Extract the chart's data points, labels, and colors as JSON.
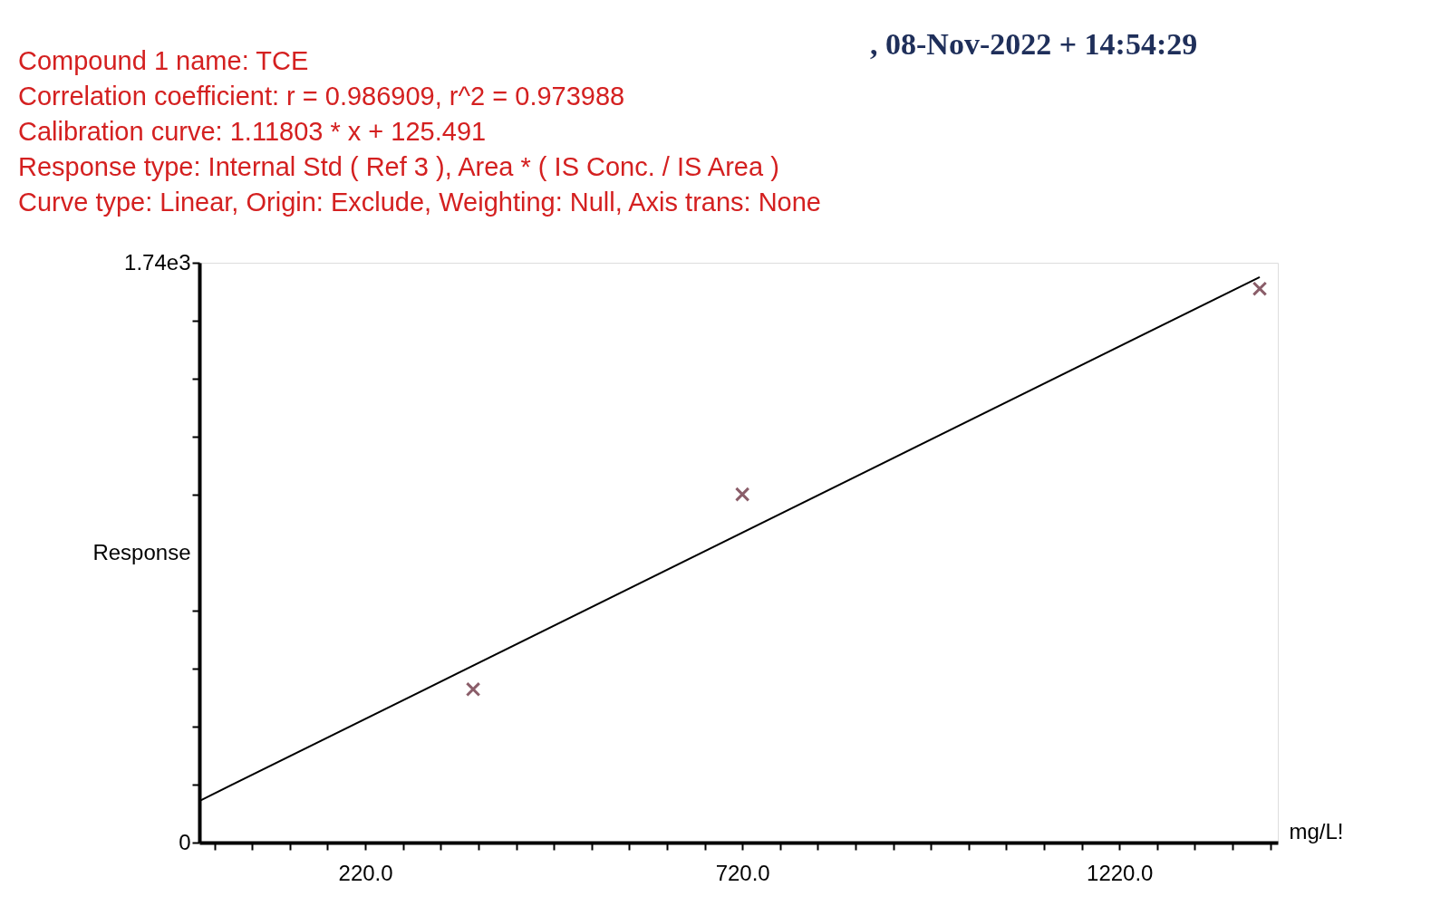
{
  "chart_data": {
    "type": "scatter",
    "annotations": [
      ", 08-Nov-2022 + 14:54:29",
      "Compound 1 name: TCE",
      "Correlation coefficient: r = 0.986909, r^2 = 0.973988",
      "Calibration curve: 1.11803 * x + 125.491",
      "Response type: Internal Std ( Ref 3 ), Area * ( IS Conc. / IS Area )",
      "Curve type: Linear, Origin: Exclude, Weighting: Null, Axis trans: None"
    ],
    "xlabel": "mg/L!",
    "ylabel": "Response",
    "xlim": [
      0,
      1430
    ],
    "ylim": [
      0,
      1740
    ],
    "xticks": [
      {
        "value": 20,
        "label": null
      },
      {
        "value": 70,
        "label": null
      },
      {
        "value": 120,
        "label": null
      },
      {
        "value": 170,
        "label": null
      },
      {
        "value": 220,
        "label": "220.0"
      },
      {
        "value": 270,
        "label": null
      },
      {
        "value": 320,
        "label": null
      },
      {
        "value": 370,
        "label": null
      },
      {
        "value": 420,
        "label": null
      },
      {
        "value": 470,
        "label": null
      },
      {
        "value": 520,
        "label": null
      },
      {
        "value": 570,
        "label": null
      },
      {
        "value": 620,
        "label": null
      },
      {
        "value": 670,
        "label": null
      },
      {
        "value": 720,
        "label": "720.0"
      },
      {
        "value": 770,
        "label": null
      },
      {
        "value": 820,
        "label": null
      },
      {
        "value": 870,
        "label": null
      },
      {
        "value": 920,
        "label": null
      },
      {
        "value": 970,
        "label": null
      },
      {
        "value": 1020,
        "label": null
      },
      {
        "value": 1070,
        "label": null
      },
      {
        "value": 1120,
        "label": null
      },
      {
        "value": 1170,
        "label": null
      },
      {
        "value": 1220,
        "label": "1220.0"
      },
      {
        "value": 1270,
        "label": null
      },
      {
        "value": 1320,
        "label": null
      },
      {
        "value": 1370,
        "label": null
      },
      {
        "value": 1420,
        "label": null
      }
    ],
    "yticks": [
      0,
      {
        "value": 174,
        "label": null
      },
      {
        "value": 348,
        "label": null
      },
      {
        "value": 522,
        "label": null
      },
      {
        "value": 696,
        "label": null
      },
      {
        "value": 1044,
        "label": null
      },
      {
        "value": 1218,
        "label": null
      },
      {
        "value": 1392,
        "label": null
      },
      {
        "value": 1566,
        "label": null
      },
      {
        "value": 1740,
        "label": "1.74e3"
      }
    ],
    "grid": false,
    "marker": "cross",
    "series": [
      {
        "color": "#5a1a2a",
        "x": [
          363,
          720,
          1406
        ],
        "values": [
          460,
          1045,
          1662
        ]
      },
      {
        "type": "line",
        "color": "#000000",
        "x": [
          0,
          1406
        ],
        "values": [
          125,
          1697
        ],
        "marker": "none",
        "line_style": "solid"
      }
    ]
  }
}
